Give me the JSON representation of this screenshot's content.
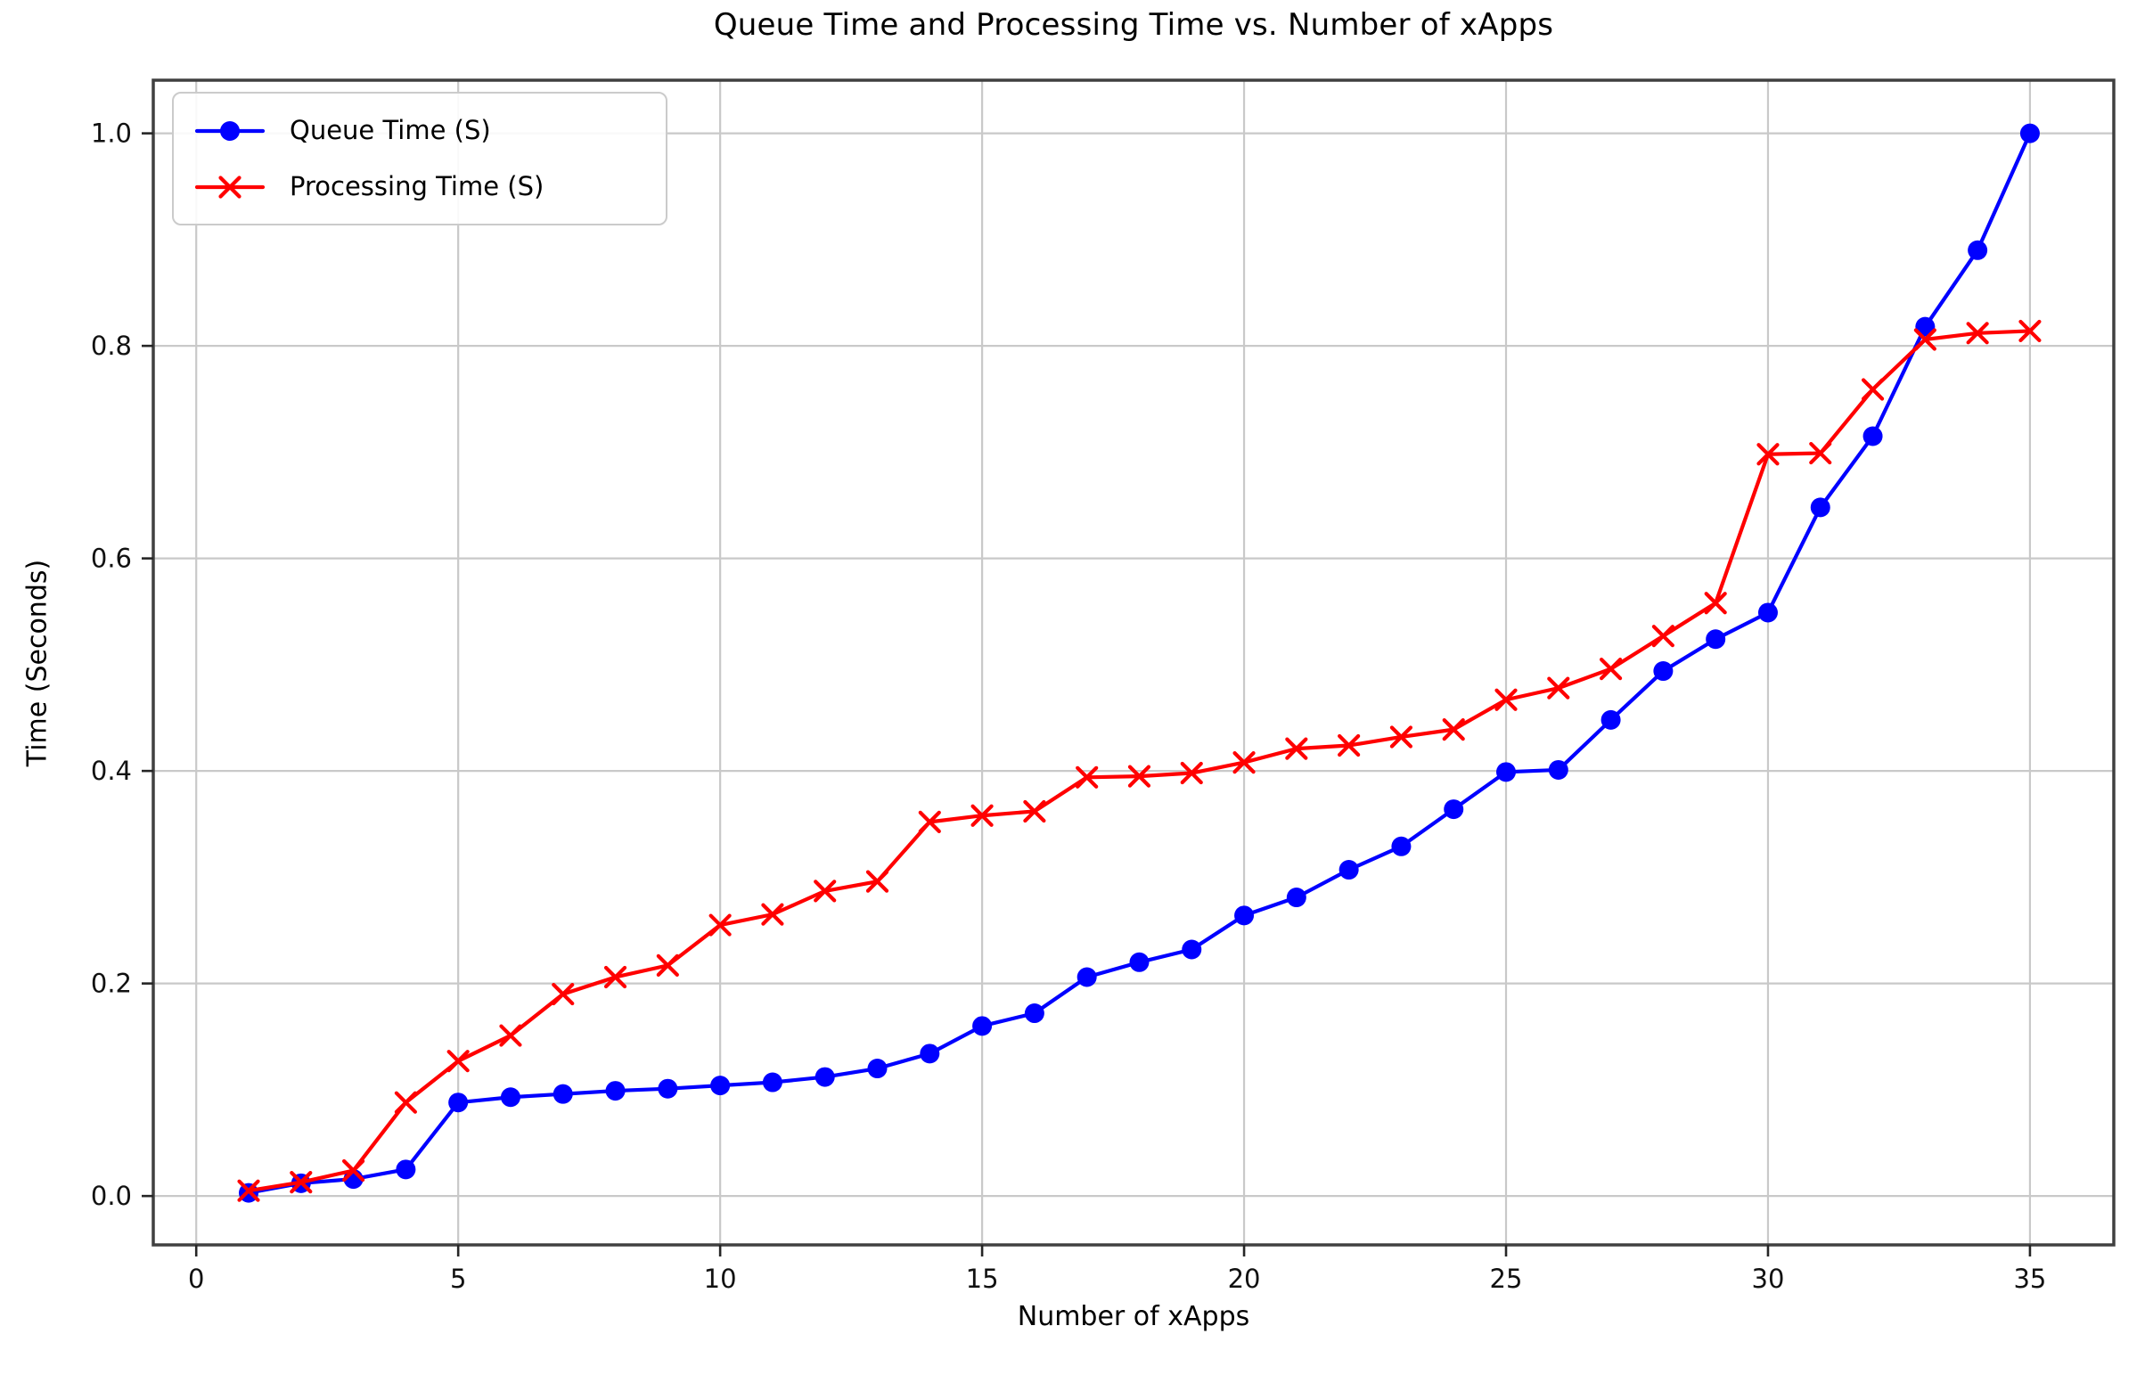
{
  "figure": {
    "title": "Queue Time and Processing Time vs. Number of xApps",
    "xlabel": "Number of xApps",
    "ylabel": "Time (Seconds)",
    "background": "#ffffff",
    "spine_color": "#404040",
    "grid_color": "#c9c9c9",
    "tick_color": "#262626",
    "tick_label_color": "#111111"
  },
  "legend": {
    "items": [
      {
        "label": "Queue Time (S)",
        "color": "#0000ff",
        "marker": "circle"
      },
      {
        "label": "Processing Time (S)",
        "color": "#ff0000",
        "marker": "x"
      }
    ]
  },
  "chart_data": {
    "type": "line",
    "title": "Queue Time and Processing Time vs. Number of xApps",
    "xlabel": "Number of xApps",
    "ylabel": "Time (Seconds)",
    "grid": true,
    "legend_position": "upper left",
    "x": [
      1,
      2,
      3,
      4,
      5,
      6,
      7,
      8,
      9,
      10,
      11,
      12,
      13,
      14,
      15,
      16,
      17,
      18,
      19,
      20,
      21,
      22,
      23,
      24,
      25,
      26,
      27,
      28,
      29,
      30,
      31,
      32,
      33,
      34,
      35
    ],
    "series": [
      {
        "name": "Queue Time (S)",
        "color": "#0000ff",
        "marker": "o",
        "values": [
          0.003,
          0.012,
          0.016,
          0.025,
          0.088,
          0.093,
          0.096,
          0.099,
          0.101,
          0.104,
          0.107,
          0.112,
          0.12,
          0.134,
          0.16,
          0.172,
          0.206,
          0.22,
          0.232,
          0.264,
          0.281,
          0.307,
          0.329,
          0.364,
          0.399,
          0.401,
          0.448,
          0.494,
          0.524,
          0.549,
          0.648,
          0.715,
          0.818,
          0.89,
          1.0
        ]
      },
      {
        "name": "Processing Time (S)",
        "color": "#ff0000",
        "marker": "x",
        "values": [
          0.005,
          0.013,
          0.024,
          0.088,
          0.127,
          0.151,
          0.19,
          0.206,
          0.217,
          0.255,
          0.265,
          0.287,
          0.296,
          0.352,
          0.358,
          0.362,
          0.394,
          0.395,
          0.398,
          0.408,
          0.421,
          0.424,
          0.432,
          0.439,
          0.467,
          0.478,
          0.496,
          0.527,
          0.558,
          0.698,
          0.699,
          0.759,
          0.806,
          0.812,
          0.814
        ]
      }
    ],
    "xticks": [
      "0",
      "5",
      "10",
      "15",
      "20",
      "25",
      "30",
      "35"
    ],
    "xtick_values": [
      0,
      5,
      10,
      15,
      20,
      25,
      30,
      35
    ],
    "yticks": [
      "0.0",
      "0.2",
      "0.4",
      "0.6",
      "0.8",
      "1.0"
    ],
    "ytick_values": [
      0.0,
      0.2,
      0.4,
      0.6,
      0.8,
      1.0
    ],
    "xlim": [
      -0.82,
      36.6
    ],
    "ylim": [
      -0.046,
      1.05
    ]
  }
}
